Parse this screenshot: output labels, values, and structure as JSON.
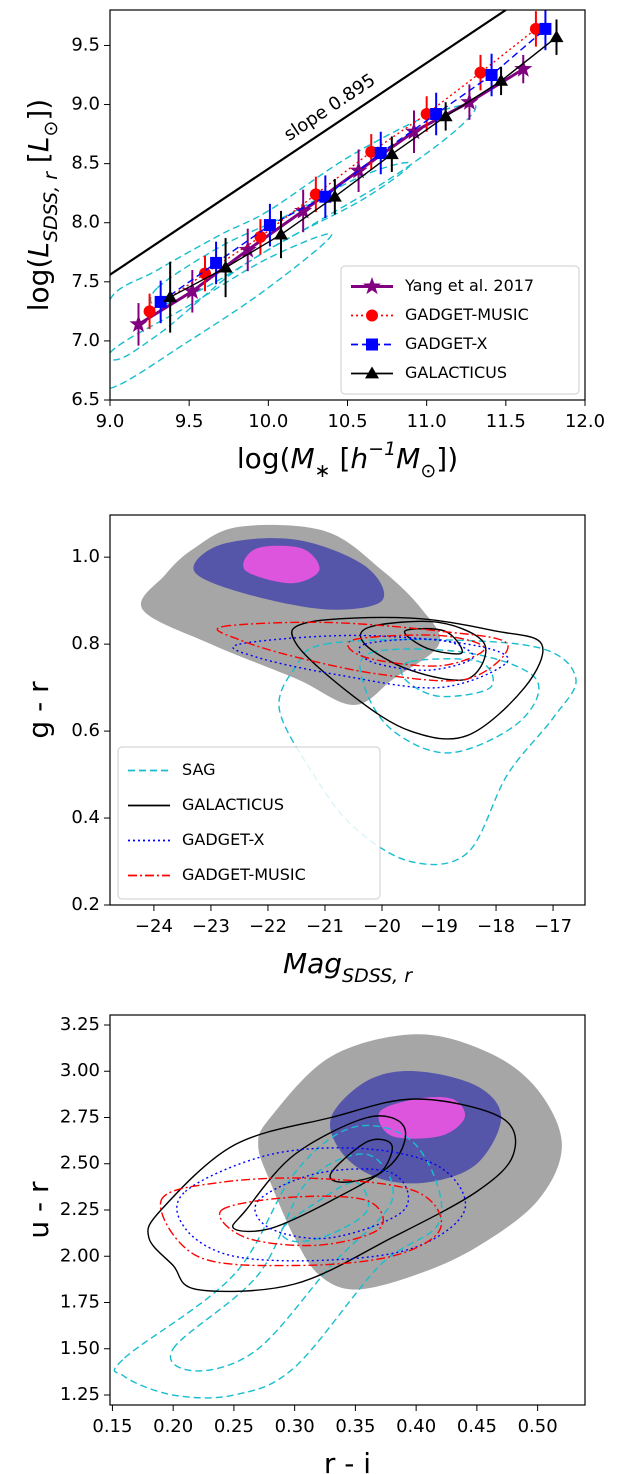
{
  "chart_data": [
    {
      "type": "errorbar",
      "xlabel": [
        "log(",
        "M",
        "∗",
        " [",
        "h",
        "−1",
        "M",
        "⊙",
        "])"
      ],
      "ylabel": [
        "log(",
        "L",
        "SDSS, r",
        "  [",
        "L",
        "⊙",
        "])"
      ],
      "xlim": [
        9.0,
        12.0
      ],
      "xticks": [
        {
          "value": 9.0,
          "label": "9.0"
        },
        9.5,
        {
          "value": 10.0,
          "label": "10.0"
        },
        10.5,
        {
          "value": 11.0,
          "label": "11.0"
        },
        11.5,
        {
          "value": 12.0,
          "label": "12.0"
        }
      ],
      "ylim": [
        6.5,
        9.8
      ],
      "yticks": [
        6.5,
        {
          "value": 7.0,
          "label": "7.0"
        },
        7.5,
        {
          "value": 8.0,
          "label": "8.0"
        },
        8.5,
        {
          "value": 9.0,
          "label": "9.0"
        },
        9.5
      ],
      "legend": "lower right",
      "reference_line": {
        "x": [
          9.0,
          11.5
        ],
        "values": [
          7.56,
          9.8
        ],
        "color": "#000000",
        "annotation": "slope 0.895"
      },
      "contours": [
        {
          "color": "#17becf",
          "linestyle": "dashed",
          "x": [
            9.0,
            9.3,
            9.7,
            10.0,
            10.5,
            11.0,
            11.3,
            11.2,
            10.8,
            10.3,
            9.8,
            9.3,
            9.0
          ],
          "y": [
            7.35,
            7.6,
            7.9,
            8.1,
            8.55,
            8.9,
            9.0,
            8.8,
            8.4,
            8.0,
            7.6,
            7.05,
            6.85
          ]
        },
        {
          "color": "#17becf",
          "linestyle": "dashed",
          "x": [
            9.3,
            9.7,
            10.1,
            10.6,
            10.9,
            10.6,
            10.1,
            9.6,
            9.3
          ],
          "y": [
            7.45,
            7.8,
            8.05,
            8.4,
            8.5,
            8.2,
            7.85,
            7.45,
            7.3
          ]
        },
        {
          "color": "#17becf",
          "linestyle": "dashed",
          "x": [
            9.0,
            9.5,
            10.0,
            10.4,
            10.0,
            9.5,
            9.0
          ],
          "y": [
            6.9,
            7.3,
            7.7,
            7.9,
            7.45,
            7.0,
            6.6
          ]
        }
      ],
      "series": [
        {
          "name": "Yang et al. 2017",
          "color": "#800080",
          "marker": "star",
          "linestyle": "solid",
          "x": [
            9.18,
            9.52,
            9.87,
            10.22,
            10.57,
            10.92,
            11.27,
            11.61
          ],
          "values": [
            7.14,
            7.42,
            7.77,
            8.1,
            8.44,
            8.77,
            9.02,
            9.3
          ],
          "errors": [
            0.18,
            0.18,
            0.18,
            0.18,
            0.18,
            0.18,
            0.15,
            0.12
          ]
        },
        {
          "name": "GADGET-MUSIC",
          "color": "#ff0000",
          "marker": "circle",
          "linestyle": "dotted",
          "x": [
            9.25,
            9.6,
            9.95,
            10.3,
            10.65,
            11.0,
            11.34,
            11.69
          ],
          "values": [
            7.25,
            7.57,
            7.88,
            8.24,
            8.6,
            8.92,
            9.27,
            9.64
          ],
          "errors": [
            0.15,
            0.15,
            0.15,
            0.15,
            0.15,
            0.15,
            0.15,
            0.15
          ]
        },
        {
          "name": "GADGET-X",
          "color": "#0000ff",
          "marker": "square",
          "linestyle": "dashed",
          "x": [
            9.32,
            9.67,
            10.01,
            10.36,
            10.71,
            11.06,
            11.41,
            11.75
          ],
          "values": [
            7.33,
            7.66,
            7.98,
            8.22,
            8.59,
            8.92,
            9.25,
            9.64
          ],
          "errors": [
            0.18,
            0.18,
            0.18,
            0.18,
            0.18,
            0.18,
            0.18,
            0.18
          ]
        },
        {
          "name": "GALACTICUS",
          "color": "#000000",
          "marker": "triangle",
          "linestyle": "solid",
          "x": [
            9.38,
            9.73,
            10.08,
            10.42,
            10.78,
            11.12,
            11.47,
            11.82
          ],
          "values": [
            7.37,
            7.62,
            7.9,
            8.22,
            8.58,
            8.9,
            9.2,
            9.57
          ],
          "errors": [
            0.3,
            0.25,
            0.2,
            0.15,
            0.15,
            0.12,
            0.12,
            0.15
          ]
        }
      ]
    },
    {
      "type": "contour",
      "xlabel": [
        "Mag",
        "SDSS, r"
      ],
      "ylabel": [
        "g - r"
      ],
      "xlim": [
        -24.77,
        -16.44
      ],
      "xticks": [
        {
          "value": -24,
          "label": "−24"
        },
        {
          "value": -23,
          "label": "−23"
        },
        {
          "value": -22,
          "label": "−22"
        },
        {
          "value": -21,
          "label": "−21"
        },
        {
          "value": -20,
          "label": "−20"
        },
        {
          "value": -19,
          "label": "−19"
        },
        {
          "value": -18,
          "label": "−18"
        },
        {
          "value": -17,
          "label": "−17"
        }
      ],
      "ylim": [
        0.2,
        1.097
      ],
      "yticks": [
        0.2,
        0.4,
        0.6,
        0.8,
        {
          "value": 1.0,
          "label": "1.0"
        }
      ],
      "legend": "lower left",
      "filled": [
        {
          "color": "#a6a6a6",
          "x": [
            -23.3,
            -22.5,
            -21,
            -20,
            -19.3,
            -19,
            -19.8,
            -20.5,
            -21.5,
            -23,
            -24.2,
            -23.8
          ],
          "y": [
            1.02,
            1.07,
            1.06,
            0.97,
            0.88,
            0.8,
            0.72,
            0.66,
            0.72,
            0.8,
            0.88,
            0.96
          ]
        },
        {
          "color": "#5555aa",
          "x": [
            -22.8,
            -21.5,
            -20.3,
            -20,
            -21,
            -22.5,
            -23.3
          ],
          "y": [
            1.03,
            1.04,
            0.98,
            0.9,
            0.88,
            0.92,
            0.97
          ]
        },
        {
          "color": "#dd55dd",
          "x": [
            -22.2,
            -21.4,
            -21.1,
            -21.6,
            -22.4
          ],
          "y": [
            1.02,
            1.02,
            0.97,
            0.94,
            0.97
          ]
        }
      ],
      "series": [
        {
          "name": "SAG",
          "color": "#17becf",
          "linestyle": "dashed",
          "contours": [
            {
              "x": [
                -21,
                -19,
                -17.2,
                -16.6,
                -17,
                -17.8,
                -18.5,
                -19.5,
                -20.5,
                -21.2,
                -21.8,
                -21.5
              ],
              "y": [
                0.8,
                0.81,
                0.79,
                0.72,
                0.63,
                0.5,
                0.32,
                0.3,
                0.38,
                0.5,
                0.65,
                0.75
              ]
            },
            {
              "x": [
                -20.2,
                -18.5,
                -17.3,
                -17.6,
                -18.8,
                -19.8,
                -20.3
              ],
              "y": [
                0.78,
                0.78,
                0.72,
                0.62,
                0.55,
                0.6,
                0.7
              ]
            },
            {
              "x": [
                -19.5,
                -18.3,
                -18.1,
                -19,
                -19.6
              ],
              "y": [
                0.76,
                0.76,
                0.7,
                0.68,
                0.72
              ]
            }
          ]
        },
        {
          "name": "GALACTICUS",
          "color": "#000000",
          "linestyle": "solid",
          "contours": [
            {
              "x": [
                -21.3,
                -19.5,
                -18,
                -17.2,
                -17.5,
                -18.5,
                -19.5,
                -20.5,
                -21.5
              ],
              "y": [
                0.85,
                0.86,
                0.83,
                0.8,
                0.7,
                0.59,
                0.6,
                0.68,
                0.8
              ]
            },
            {
              "x": [
                -20.2,
                -19,
                -18.2,
                -18.5,
                -19.5,
                -20.3
              ],
              "y": [
                0.84,
                0.85,
                0.8,
                0.72,
                0.74,
                0.8
              ]
            },
            {
              "x": [
                -19.6,
                -18.9,
                -18.6,
                -19.2
              ],
              "y": [
                0.83,
                0.83,
                0.78,
                0.79
              ]
            }
          ]
        },
        {
          "name": "GADGET-X",
          "color": "#0000ff",
          "linestyle": "dotted",
          "contours": [
            {
              "x": [
                -22.5,
                -20.5,
                -18.5,
                -17.8,
                -19,
                -20.8,
                -22.2
              ],
              "y": [
                0.8,
                0.82,
                0.8,
                0.76,
                0.7,
                0.73,
                0.77
              ]
            },
            {
              "x": [
                -20.3,
                -19,
                -18.4,
                -19.2,
                -20.2
              ],
              "y": [
                0.8,
                0.81,
                0.77,
                0.74,
                0.76
              ]
            }
          ]
        },
        {
          "name": "GADGET-MUSIC",
          "color": "#ff0000",
          "linestyle": "dashdot",
          "contours": [
            {
              "x": [
                -22.8,
                -21,
                -19,
                -17.8,
                -18.5,
                -20,
                -21.5,
                -22.5
              ],
              "y": [
                0.84,
                0.85,
                0.83,
                0.8,
                0.72,
                0.73,
                0.77,
                0.81
              ]
            },
            {
              "x": [
                -20.5,
                -19,
                -18.2,
                -19,
                -20.3
              ],
              "y": [
                0.81,
                0.82,
                0.79,
                0.75,
                0.77
              ]
            }
          ]
        }
      ]
    },
    {
      "type": "contour",
      "xlabel": [
        "r - i"
      ],
      "ylabel": [
        "u - r"
      ],
      "xlim": [
        0.148,
        0.539
      ],
      "xticks": [
        0.15,
        {
          "value": 0.2,
          "label": "0.20"
        },
        0.25,
        {
          "value": 0.3,
          "label": "0.30"
        },
        0.35,
        {
          "value": 0.4,
          "label": "0.40"
        },
        0.45,
        {
          "value": 0.5,
          "label": "0.50"
        }
      ],
      "ylim": [
        1.196,
        3.304
      ],
      "yticks": [
        1.25,
        {
          "value": 1.5,
          "label": "1.50"
        },
        1.75,
        {
          "value": 2.0,
          "label": "2.00"
        },
        2.25,
        {
          "value": 2.5,
          "label": "2.50"
        },
        2.75,
        {
          "value": 3.0,
          "label": "3.00"
        },
        3.25
      ],
      "filled": [
        {
          "color": "#a6a6a6",
          "x": [
            0.28,
            0.33,
            0.4,
            0.46,
            0.5,
            0.52,
            0.5,
            0.45,
            0.4,
            0.35,
            0.32,
            0.3,
            0.28,
            0.27
          ],
          "y": [
            2.75,
            3.08,
            3.2,
            3.1,
            2.9,
            2.6,
            2.3,
            2.05,
            1.9,
            1.82,
            1.9,
            2.1,
            2.4,
            2.6
          ]
        },
        {
          "color": "#5555aa",
          "x": [
            0.33,
            0.36,
            0.4,
            0.45,
            0.47,
            0.45,
            0.41,
            0.37,
            0.34
          ],
          "y": [
            2.75,
            2.95,
            3.0,
            2.92,
            2.75,
            2.5,
            2.4,
            2.42,
            2.55
          ]
        },
        {
          "color": "#dd55dd",
          "x": [
            0.37,
            0.4,
            0.43,
            0.44,
            0.42,
            0.38
          ],
          "y": [
            2.78,
            2.85,
            2.85,
            2.75,
            2.65,
            2.65
          ]
        }
      ],
      "series": [
        {
          "color": "#17becf",
          "linestyle": "dashed",
          "contours": [
            {
              "x": [
                0.16,
                0.25,
                0.3,
                0.35,
                0.4,
                0.42,
                0.37,
                0.3,
                0.25,
                0.2,
                0.16
              ],
              "y": [
                1.45,
                1.9,
                2.45,
                2.7,
                2.6,
                2.2,
                1.95,
                1.4,
                1.25,
                1.25,
                1.35
              ]
            },
            {
              "x": [
                0.2,
                0.27,
                0.31,
                0.36,
                0.38,
                0.33,
                0.27,
                0.22
              ],
              "y": [
                1.5,
                1.9,
                2.4,
                2.55,
                2.3,
                1.95,
                1.5,
                1.38
              ]
            },
            {
              "x": [
                0.29,
                0.32,
                0.35,
                0.36,
                0.33,
                0.3
              ],
              "y": [
                2.15,
                2.3,
                2.4,
                2.25,
                2.12,
                2.08
              ]
            }
          ]
        },
        {
          "color": "#000000",
          "linestyle": "solid",
          "contours": [
            {
              "x": [
                0.19,
                0.25,
                0.33,
                0.4,
                0.47,
                0.48,
                0.45,
                0.38,
                0.3,
                0.22,
                0.2,
                0.18
              ],
              "y": [
                2.25,
                2.6,
                2.75,
                2.85,
                2.75,
                2.55,
                2.35,
                2.1,
                1.85,
                1.82,
                1.95,
                2.1
              ]
            },
            {
              "x": [
                0.26,
                0.3,
                0.36,
                0.39,
                0.38,
                0.33,
                0.28,
                0.25
              ],
              "y": [
                2.25,
                2.55,
                2.75,
                2.7,
                2.5,
                2.3,
                2.15,
                2.15
              ]
            },
            {
              "x": [
                0.33,
                0.36,
                0.38,
                0.37,
                0.34
              ],
              "y": [
                2.45,
                2.62,
                2.6,
                2.45,
                2.4
              ]
            }
          ]
        },
        {
          "color": "#0000ff",
          "linestyle": "dotted",
          "contours": [
            {
              "x": [
                0.21,
                0.28,
                0.36,
                0.42,
                0.44,
                0.4,
                0.33,
                0.25,
                0.21
              ],
              "y": [
                2.35,
                2.55,
                2.58,
                2.48,
                2.25,
                2.05,
                1.98,
                2.0,
                2.15
              ]
            },
            {
              "x": [
                0.27,
                0.32,
                0.38,
                0.39,
                0.33,
                0.28
              ],
              "y": [
                2.3,
                2.45,
                2.45,
                2.25,
                2.1,
                2.15
              ]
            }
          ]
        },
        {
          "color": "#ff0000",
          "linestyle": "dashdot",
          "contours": [
            {
              "x": [
                0.19,
                0.24,
                0.32,
                0.4,
                0.42,
                0.38,
                0.3,
                0.22
              ],
              "y": [
                2.3,
                2.4,
                2.42,
                2.35,
                2.15,
                2.0,
                1.95,
                2.0
              ]
            },
            {
              "x": [
                0.24,
                0.3,
                0.36,
                0.37,
                0.32,
                0.26
              ],
              "y": [
                2.25,
                2.32,
                2.3,
                2.15,
                2.06,
                2.1
              ]
            }
          ]
        }
      ]
    }
  ]
}
